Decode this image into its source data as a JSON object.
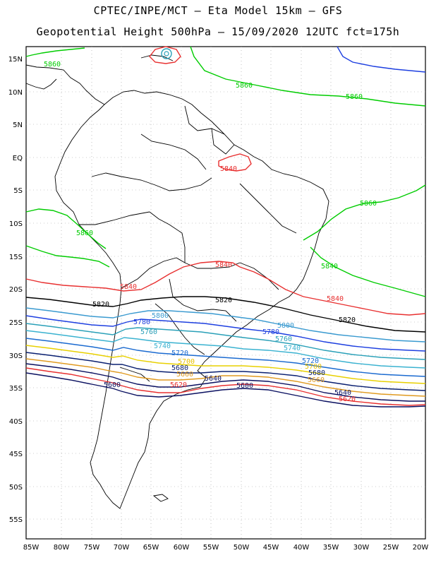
{
  "header": {
    "line1": "CPTEC/INPE/MCT –  Eta Model 15km – GFS",
    "line2": "Geopotential Height 500hPa – 15/09/2020 12UTC fct=175h"
  },
  "axes": {
    "lat_labels": [
      "15N",
      "10N",
      "5N",
      "EQ",
      "5S",
      "10S",
      "15S",
      "20S",
      "25S",
      "30S",
      "35S",
      "40S",
      "45S",
      "50S",
      "55S"
    ],
    "lon_labels": [
      "85W",
      "80W",
      "75W",
      "70W",
      "65W",
      "60W",
      "55W",
      "50W",
      "45W",
      "40W",
      "35W",
      "30W",
      "25W",
      "20W"
    ]
  },
  "contour_labels": {
    "c5860": "5860",
    "c5840": "5840",
    "c5820": "5820",
    "c5800": "5800",
    "c5780": "5780",
    "c5760": "5760",
    "c5740": "5740",
    "c5720": "5720",
    "c5700": "5700",
    "c5680": "5680",
    "c5660": "5660",
    "c5640": "5640",
    "c5620": "5620",
    "c5600": "5600"
  },
  "colors": {
    "c5860": "#00cc00",
    "c5840": "#e83030",
    "c5820": "#000000",
    "c5800": "#3a9ad0",
    "c5780": "#1d3fe0",
    "c5760": "#2aa0b8",
    "c5740": "#3ab2d0",
    "c5720": "#1a6ad0",
    "c5700": "#e8d000",
    "c5680": "#0a2070",
    "c5660": "#e09a20",
    "c5640": "#0a1060",
    "c5620": "#e83030",
    "c5600": "#0a1060",
    "low_center": "#2aa0b8"
  }
}
